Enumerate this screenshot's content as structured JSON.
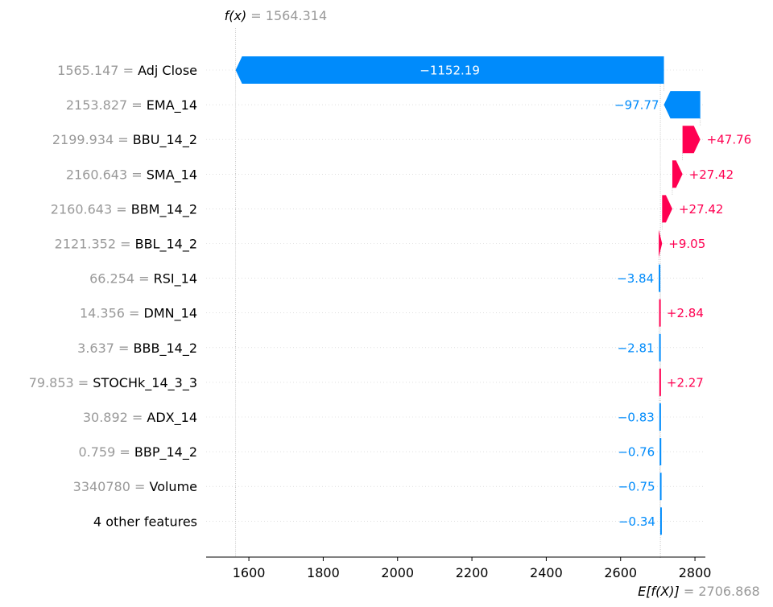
{
  "chart_data": {
    "type": "waterfall",
    "fx_label": "f(x)",
    "fx_value": "1564.314",
    "ex_label": "E[f(X)]",
    "ex_value": "2706.868",
    "fx": 1564.314,
    "base": 2706.868,
    "xlim": [
      1485,
      2828
    ],
    "xticks": [
      1600,
      1800,
      2000,
      2200,
      2400,
      2600,
      2800
    ],
    "xtick_labels": [
      "1600",
      "1800",
      "2000",
      "2200",
      "2400",
      "2600",
      "2800"
    ],
    "colors": {
      "negative": "#008bfb",
      "positive": "#ff0051"
    },
    "features": [
      {
        "value": "1565.147",
        "name": "Adj Close",
        "shap": -1152.19,
        "label": "−1152.19"
      },
      {
        "value": "2153.827",
        "name": "EMA_14",
        "shap": -97.77,
        "label": "−97.77"
      },
      {
        "value": "2199.934",
        "name": "BBU_14_2",
        "shap": 47.76,
        "label": "+47.76"
      },
      {
        "value": "2160.643",
        "name": "SMA_14",
        "shap": 27.42,
        "label": "+27.42"
      },
      {
        "value": "2160.643",
        "name": "BBM_14_2",
        "shap": 27.42,
        "label": "+27.42"
      },
      {
        "value": "2121.352",
        "name": "BBL_14_2",
        "shap": 9.05,
        "label": "+9.05"
      },
      {
        "value": "66.254",
        "name": "RSI_14",
        "shap": -3.84,
        "label": "−3.84"
      },
      {
        "value": "14.356",
        "name": "DMN_14",
        "shap": 2.84,
        "label": "+2.84"
      },
      {
        "value": "3.637",
        "name": "BBB_14_2",
        "shap": -2.81,
        "label": "−2.81"
      },
      {
        "value": "79.853",
        "name": "STOCHk_14_3_3",
        "shap": 2.27,
        "label": "+2.27"
      },
      {
        "value": "30.892",
        "name": "ADX_14",
        "shap": -0.83,
        "label": "−0.83"
      },
      {
        "value": "0.759",
        "name": "BBP_14_2",
        "shap": -0.76,
        "label": "−0.76"
      },
      {
        "value": "3340780",
        "name": "Volume",
        "shap": -0.75,
        "label": "−0.75"
      },
      {
        "value": "",
        "name": "4 other features",
        "shap": -0.34,
        "label": "−0.34"
      }
    ]
  }
}
